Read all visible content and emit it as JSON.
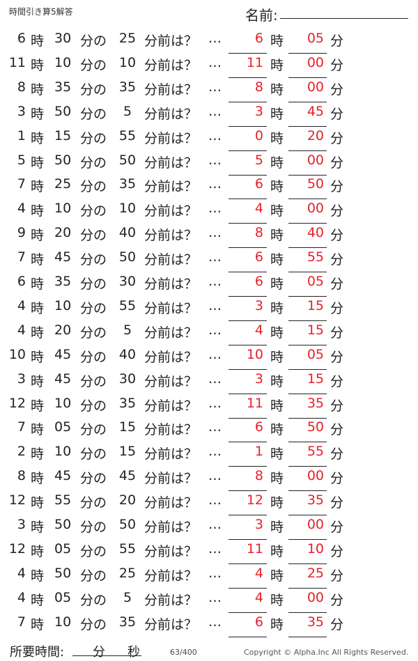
{
  "header": {
    "title": "時間引き算5解答",
    "name_label": "名前:"
  },
  "labels": {
    "hour": "時",
    "min_of": "分の",
    "before": "分前は？",
    "dots": "…",
    "min": "分"
  },
  "problems": [
    {
      "h": "6",
      "m": "30",
      "b": "25",
      "ah": "6",
      "am": "05"
    },
    {
      "h": "11",
      "m": "10",
      "b": "10",
      "ah": "11",
      "am": "00"
    },
    {
      "h": "8",
      "m": "35",
      "b": "35",
      "ah": "8",
      "am": "00"
    },
    {
      "h": "3",
      "m": "50",
      "b": "5",
      "ah": "3",
      "am": "45"
    },
    {
      "h": "1",
      "m": "15",
      "b": "55",
      "ah": "0",
      "am": "20"
    },
    {
      "h": "5",
      "m": "50",
      "b": "50",
      "ah": "5",
      "am": "00"
    },
    {
      "h": "7",
      "m": "25",
      "b": "35",
      "ah": "6",
      "am": "50"
    },
    {
      "h": "4",
      "m": "10",
      "b": "10",
      "ah": "4",
      "am": "00"
    },
    {
      "h": "9",
      "m": "20",
      "b": "40",
      "ah": "8",
      "am": "40"
    },
    {
      "h": "7",
      "m": "45",
      "b": "50",
      "ah": "6",
      "am": "55"
    },
    {
      "h": "6",
      "m": "35",
      "b": "30",
      "ah": "6",
      "am": "05"
    },
    {
      "h": "4",
      "m": "10",
      "b": "55",
      "ah": "3",
      "am": "15"
    },
    {
      "h": "4",
      "m": "20",
      "b": "5",
      "ah": "4",
      "am": "15"
    },
    {
      "h": "10",
      "m": "45",
      "b": "40",
      "ah": "10",
      "am": "05"
    },
    {
      "h": "3",
      "m": "45",
      "b": "30",
      "ah": "3",
      "am": "15"
    },
    {
      "h": "12",
      "m": "10",
      "b": "35",
      "ah": "11",
      "am": "35"
    },
    {
      "h": "7",
      "m": "05",
      "b": "15",
      "ah": "6",
      "am": "50"
    },
    {
      "h": "2",
      "m": "10",
      "b": "15",
      "ah": "1",
      "am": "55"
    },
    {
      "h": "8",
      "m": "45",
      "b": "45",
      "ah": "8",
      "am": "00"
    },
    {
      "h": "12",
      "m": "55",
      "b": "20",
      "ah": "12",
      "am": "35"
    },
    {
      "h": "3",
      "m": "50",
      "b": "50",
      "ah": "3",
      "am": "00"
    },
    {
      "h": "12",
      "m": "05",
      "b": "55",
      "ah": "11",
      "am": "10"
    },
    {
      "h": "4",
      "m": "50",
      "b": "25",
      "ah": "4",
      "am": "25"
    },
    {
      "h": "4",
      "m": "05",
      "b": "5",
      "ah": "4",
      "am": "00"
    },
    {
      "h": "7",
      "m": "10",
      "b": "35",
      "ah": "6",
      "am": "35"
    }
  ],
  "footer": {
    "time_label": "所要時間:",
    "min": "分",
    "sec": "秒",
    "page": "63/400",
    "copyright": "Copyright ©  Alpha.Inc All Rights Reserved."
  },
  "colors": {
    "answer": "#e8202a"
  }
}
